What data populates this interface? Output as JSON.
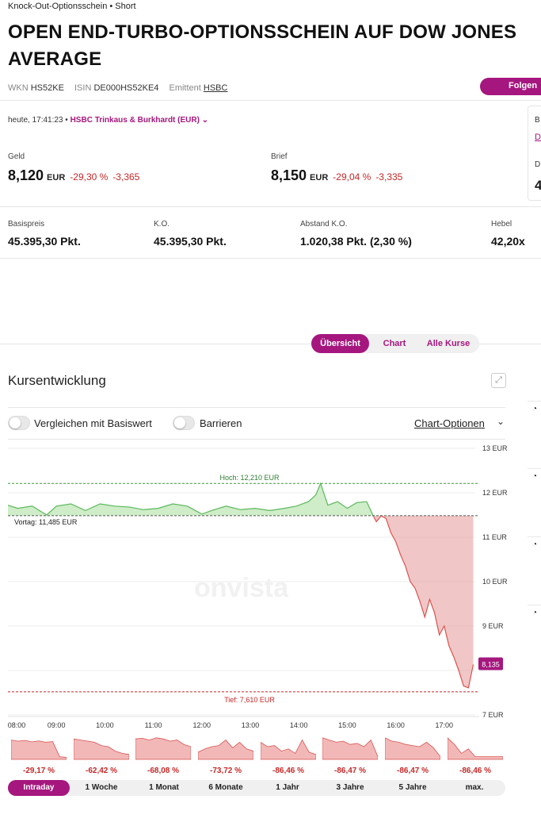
{
  "header": {
    "breadcrumb": "Knock-Out-Optionsschein • Short",
    "title": "OPEN END-TURBO-OPTIONSSCHEIN AUF DOW JONES AVERAGE",
    "wkn_label": "WKN",
    "wkn": "HS52KE",
    "isin_label": "ISIN",
    "isin": "DE000HS52KE4",
    "issuer_label": "Emittent",
    "issuer": "HSBC",
    "follow_label": "Folgen"
  },
  "quote": {
    "time": "heute, 17:41:23 •",
    "exchange": "HSBC Trinkaus & Burkhardt (EUR)",
    "bid_label": "Geld",
    "bid": "8,120",
    "bid_cur": "EUR",
    "bid_pct": "-29,30 %",
    "bid_abs": "-3,365",
    "ask_label": "Brief",
    "ask": "8,150",
    "ask_cur": "EUR",
    "ask_pct": "-29,04 %",
    "ask_abs": "-3,335",
    "side_b": "B",
    "side_d": "D",
    "side_d2": "D",
    "side_4": "4"
  },
  "keyfacts": [
    {
      "label": "Basispreis",
      "value": "45.395,30 Pkt."
    },
    {
      "label": "K.O.",
      "value": "45.395,30 Pkt."
    },
    {
      "label": "Abstand K.O.",
      "value": "1.020,38 Pkt. (2,30 %)"
    },
    {
      "label": "Hebel",
      "value": "42,20x"
    }
  ],
  "tabs": [
    "Übersicht",
    "Chart",
    "Alle Kurse"
  ],
  "section": {
    "title": "Kursentwicklung",
    "expand_icon": "expand-icon",
    "toggle_compare": "Vergleichen mit Basiswert",
    "toggle_barriers": "Barrieren",
    "chart_options": "Chart-Optionen",
    "chevron": "⌄"
  },
  "chart_data": {
    "type": "line",
    "y_ticks": [
      "13 EUR",
      "12 EUR",
      "11 EUR",
      "10 EUR",
      "9 EUR",
      "7 EUR"
    ],
    "x_ticks": [
      "08:00",
      "09:00",
      "10:00",
      "11:00",
      "12:00",
      "13:00",
      "14:00",
      "15:00",
      "16:00",
      "17:00"
    ],
    "ylim": [
      7,
      13
    ],
    "high_label": "Hoch: 12,210 EUR",
    "high": 12.21,
    "low_label": "Tief: 7,610 EUR",
    "low": 7.61,
    "prev_label": "Vortag: 11,485 EUR",
    "prev": 11.485,
    "last_label": "8,135",
    "last": 8.135,
    "watermark": "onvista",
    "series": [
      {
        "x": [
          8.0,
          8.2,
          8.5,
          8.8,
          9.0,
          9.3,
          9.6,
          9.9,
          10.2,
          10.5,
          10.8,
          11.1,
          11.4,
          11.7,
          12.0,
          12.2,
          12.5,
          12.8,
          13.1,
          13.4,
          13.7,
          13.95,
          14.2,
          14.35,
          14.45,
          14.6,
          14.8,
          15.0,
          15.2,
          15.4,
          15.55,
          15.6,
          15.7,
          15.8,
          15.9,
          16.0,
          16.1,
          16.2,
          16.3,
          16.4,
          16.5,
          16.6,
          16.7,
          16.8,
          16.9,
          17.0,
          17.1,
          17.2,
          17.3,
          17.4,
          17.5,
          17.6
        ],
        "y": [
          11.72,
          11.65,
          11.7,
          11.5,
          11.7,
          11.75,
          11.6,
          11.75,
          11.7,
          11.68,
          11.62,
          11.65,
          11.75,
          11.7,
          11.52,
          11.6,
          11.7,
          11.62,
          11.65,
          11.6,
          11.65,
          11.7,
          11.8,
          11.95,
          12.21,
          11.72,
          11.8,
          11.65,
          11.78,
          11.8,
          11.45,
          11.35,
          11.48,
          11.42,
          11.1,
          10.9,
          10.6,
          10.35,
          10.0,
          9.85,
          9.55,
          9.2,
          9.6,
          9.3,
          8.8,
          9.0,
          8.55,
          8.3,
          8.0,
          7.65,
          7.61,
          8.135
        ]
      }
    ]
  },
  "sparks": [
    {
      "pct": "-29,17 %",
      "pts": [
        0.2,
        0.25,
        0.22,
        0.28,
        0.24,
        0.3,
        0.27,
        0.95,
        0.98
      ]
    },
    {
      "pct": "-62,42 %",
      "pts": [
        0.15,
        0.2,
        0.25,
        0.3,
        0.45,
        0.5,
        0.7,
        0.8,
        0.85
      ]
    },
    {
      "pct": "-68,08 %",
      "pts": [
        0.15,
        0.12,
        0.2,
        0.1,
        0.15,
        0.25,
        0.2,
        0.4,
        0.5
      ]
    },
    {
      "pct": "-73,72 %",
      "pts": [
        0.75,
        0.6,
        0.5,
        0.45,
        0.2,
        0.55,
        0.3,
        0.6,
        0.7
      ]
    },
    {
      "pct": "-86,46 %",
      "pts": [
        0.3,
        0.5,
        0.45,
        0.7,
        0.6,
        0.8,
        0.2,
        0.75,
        0.85
      ]
    },
    {
      "pct": "-86,47 %",
      "pts": [
        0.1,
        0.2,
        0.3,
        0.25,
        0.4,
        0.35,
        0.5,
        0.2,
        0.95
      ]
    },
    {
      "pct": "-86,47 %",
      "pts": [
        0.1,
        0.25,
        0.3,
        0.4,
        0.45,
        0.5,
        0.3,
        0.55,
        0.95
      ]
    },
    {
      "pct": "-86,46 %",
      "pts": [
        0.1,
        0.4,
        0.8,
        0.6,
        0.95,
        0.95,
        0.95,
        0.95,
        0.95
      ]
    }
  ],
  "ranges": [
    "Intraday",
    "1 Woche",
    "1 Monat",
    "6 Monate",
    "1 Jahr",
    "3 Jahre",
    "5 Jahre",
    "max."
  ]
}
